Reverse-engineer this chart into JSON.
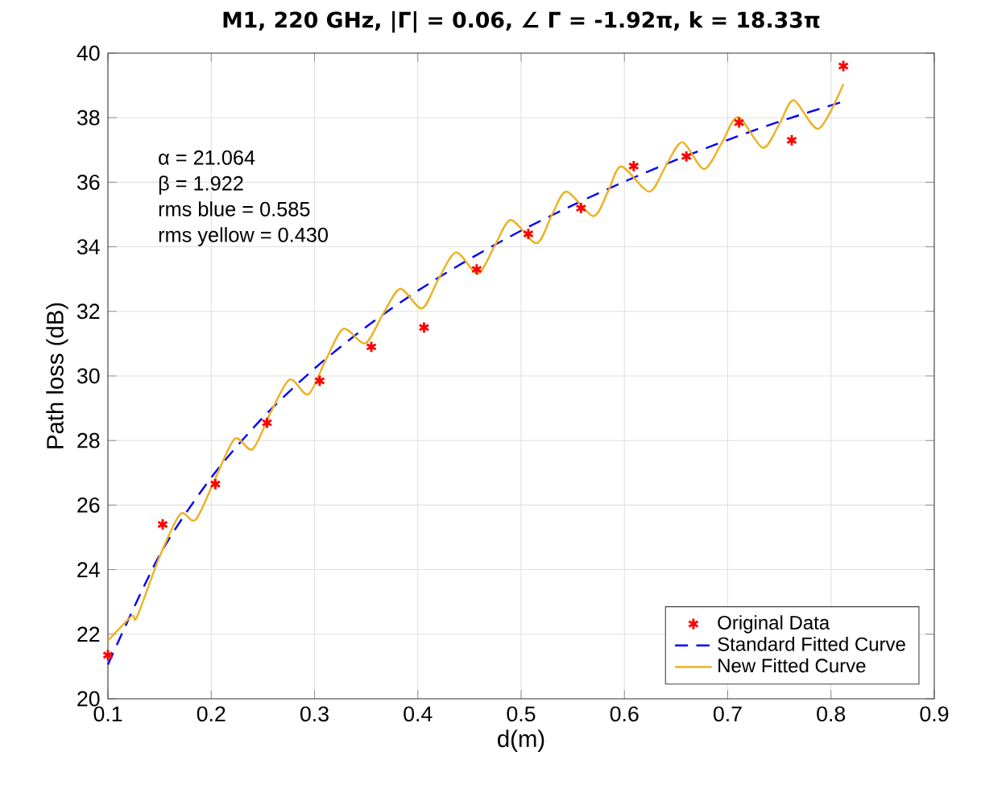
{
  "chart_data": {
    "type": "line",
    "title": "M1, 220 GHz, |Γ| = 0.06, ∠ Γ = -1.92π, k = 18.33π",
    "xlabel": "d(m)",
    "ylabel": "Path loss (dB)",
    "xlim": [
      0.1,
      0.9
    ],
    "ylim": [
      20,
      40
    ],
    "xticks": [
      0.1,
      0.2,
      0.3,
      0.4,
      0.5,
      0.6,
      0.7,
      0.8,
      0.9
    ],
    "yticks": [
      20,
      22,
      24,
      26,
      28,
      30,
      32,
      34,
      36,
      38,
      40
    ],
    "grid": true,
    "legend": "bottom right",
    "annotations": [
      "α = 21.064",
      "β = 1.922",
      "rms blue = 0.585",
      "rms yellow = 0.430"
    ],
    "series": [
      {
        "name": "Original Data",
        "type": "scatter",
        "marker": "cross",
        "color": "#ff0000",
        "x": [
          0.1,
          0.153,
          0.204,
          0.254,
          0.305,
          0.355,
          0.406,
          0.457,
          0.507,
          0.558,
          0.609,
          0.66,
          0.711,
          0.762,
          0.812
        ],
        "values": [
          21.35,
          25.4,
          26.65,
          28.55,
          29.85,
          30.9,
          31.5,
          33.3,
          34.4,
          35.2,
          36.5,
          36.8,
          37.85,
          37.3,
          39.6
        ]
      },
      {
        "name": "Standard Fitted Curve",
        "line_style": "dashed",
        "color": "#0000ff",
        "x": [
          0.1,
          0.15,
          0.2,
          0.25,
          0.3,
          0.35,
          0.4,
          0.45,
          0.5,
          0.55,
          0.6,
          0.65,
          0.7,
          0.75,
          0.812
        ],
        "values": [
          21.06,
          24.45,
          26.85,
          28.71,
          30.23,
          31.52,
          32.64,
          33.62,
          34.5,
          35.29,
          36.02,
          36.69,
          37.31,
          37.88,
          38.5
        ]
      },
      {
        "name": "New Fitted Curve",
        "line_style": "solid",
        "color": "#edb120",
        "x": [
          0.1,
          0.123,
          0.128,
          0.15,
          0.17,
          0.185,
          0.205,
          0.223,
          0.24,
          0.258,
          0.276,
          0.294,
          0.311,
          0.328,
          0.349,
          0.366,
          0.383,
          0.404,
          0.42,
          0.437,
          0.458,
          0.474,
          0.49,
          0.515,
          0.53,
          0.544,
          0.57,
          0.584,
          0.597,
          0.624,
          0.64,
          0.656,
          0.677,
          0.694,
          0.71,
          0.734,
          0.75,
          0.764,
          0.788,
          0.812
        ],
        "values": [
          21.8,
          22.56,
          22.53,
          24.4,
          25.72,
          25.55,
          26.9,
          28.06,
          27.73,
          28.9,
          29.89,
          29.43,
          30.5,
          31.46,
          31.01,
          31.9,
          32.7,
          32.09,
          33.0,
          33.83,
          33.17,
          34.0,
          34.83,
          34.11,
          35.0,
          35.71,
          34.95,
          35.7,
          36.49,
          35.71,
          36.5,
          37.24,
          36.41,
          37.2,
          38.02,
          37.07,
          37.8,
          38.54,
          37.66,
          39.04
        ]
      }
    ]
  }
}
